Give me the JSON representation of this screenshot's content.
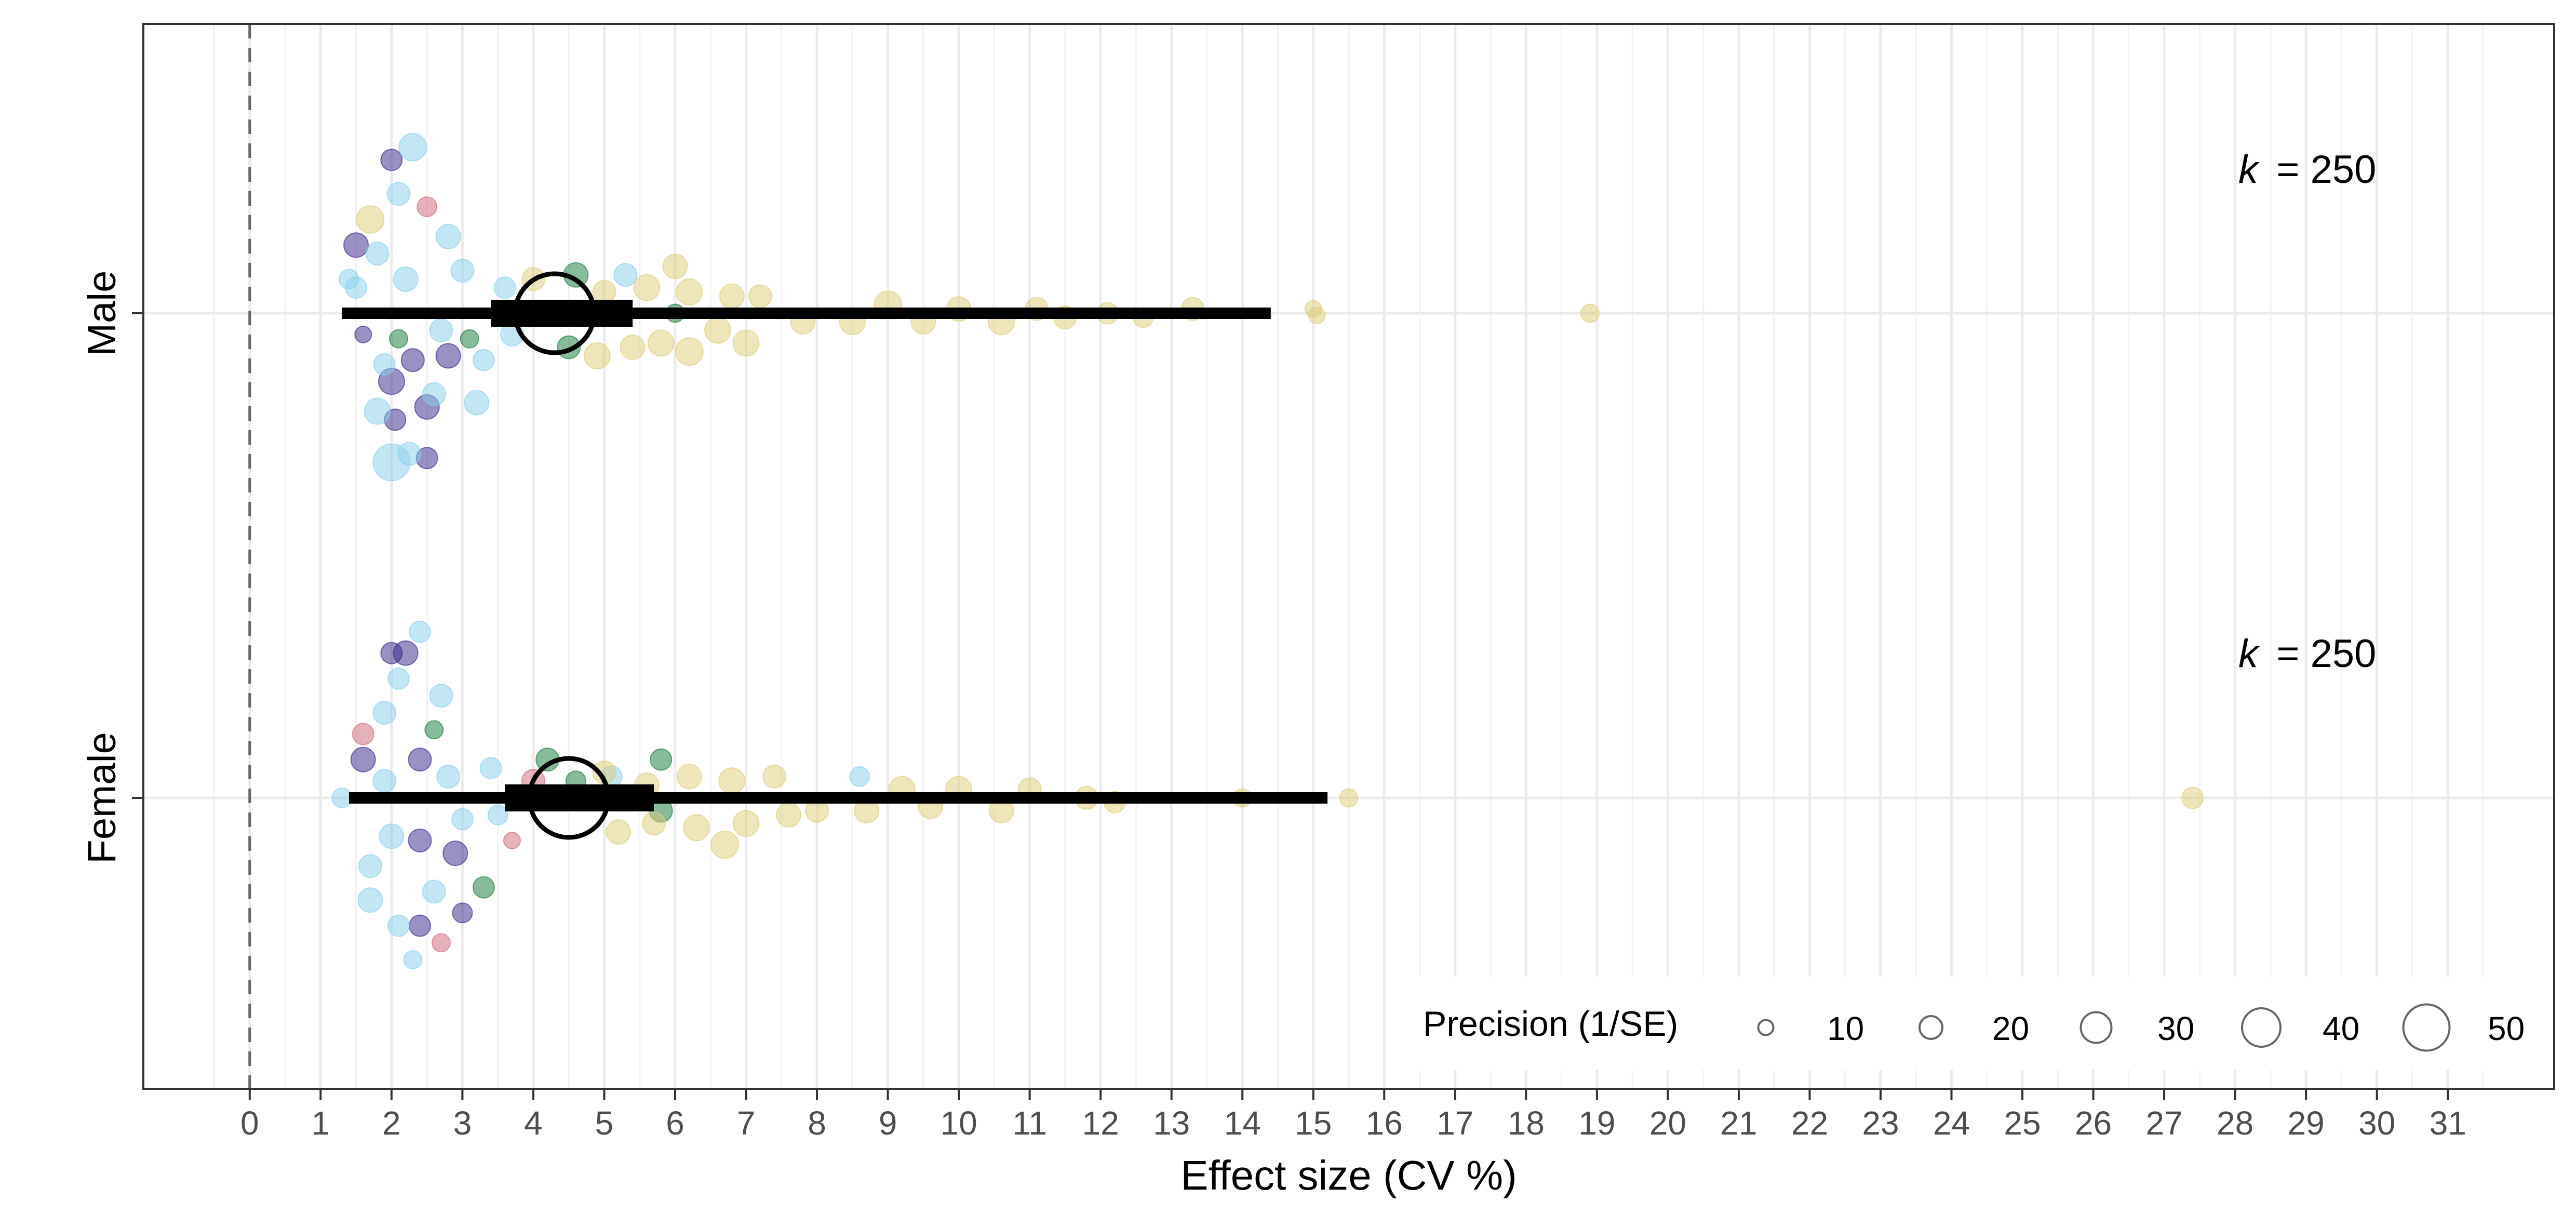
{
  "chart_data": {
    "type": "scatter",
    "subtype": "orchard-plot",
    "title": "",
    "xlabel": "Effect size (CV %)",
    "ylabel": "",
    "xlim": [
      -1.5,
      32.5
    ],
    "x_ticks": [
      0,
      1,
      2,
      3,
      4,
      5,
      6,
      7,
      8,
      9,
      10,
      11,
      12,
      13,
      14,
      15,
      16,
      17,
      18,
      19,
      20,
      21,
      22,
      23,
      24,
      25,
      26,
      27,
      28,
      29,
      30,
      31
    ],
    "reference_line": 0,
    "grid": true,
    "categories": [
      "Male",
      "Female"
    ],
    "group_colors": {
      "light_blue": "#87CEEB",
      "yellow": "#DDCC77",
      "dark_blue": "#332288",
      "green": "#117733",
      "red": "#CC6677"
    },
    "groups": [
      {
        "name": "Male",
        "k_label": "k = 250",
        "k_symbol": "k",
        "k_value": "= 250",
        "estimate": 4.3,
        "ci": [
          3.4,
          5.4
        ],
        "pi": [
          1.3,
          14.4
        ],
        "points": [
          {
            "x": 2.0,
            "dy": 0.35,
            "p": 38,
            "c": "light_blue"
          },
          {
            "x": 2.5,
            "dy": 0.34,
            "p": 18,
            "c": "dark_blue"
          },
          {
            "x": 2.25,
            "dy": 0.33,
            "p": 20,
            "c": "light_blue"
          },
          {
            "x": 2.5,
            "dy": 0.22,
            "p": 22,
            "c": "dark_blue"
          },
          {
            "x": 2.05,
            "dy": 0.25,
            "p": 18,
            "c": "dark_blue"
          },
          {
            "x": 2.0,
            "dy": 0.16,
            "p": 24,
            "c": "dark_blue"
          },
          {
            "x": 2.3,
            "dy": 0.11,
            "p": 20,
            "c": "dark_blue"
          },
          {
            "x": 2.8,
            "dy": 0.1,
            "p": 22,
            "c": "dark_blue"
          },
          {
            "x": 1.6,
            "dy": 0.05,
            "p": 12,
            "c": "dark_blue"
          },
          {
            "x": 2.1,
            "dy": 0.06,
            "p": 14,
            "c": "green"
          },
          {
            "x": 3.1,
            "dy": 0.06,
            "p": 14,
            "c": "green"
          },
          {
            "x": 4.5,
            "dy": 0.08,
            "p": 20,
            "c": "green"
          },
          {
            "x": 4.6,
            "dy": -0.09,
            "p": 22,
            "c": "green"
          },
          {
            "x": 6.0,
            "dy": 0.0,
            "p": 14,
            "c": "green"
          },
          {
            "x": 1.5,
            "dy": -0.16,
            "p": 22,
            "c": "dark_blue"
          },
          {
            "x": 2.0,
            "dy": -0.36,
            "p": 18,
            "c": "dark_blue"
          },
          {
            "x": 2.5,
            "dy": -0.25,
            "p": 16,
            "c": "red"
          },
          {
            "x": 1.7,
            "dy": -0.22,
            "p": 26,
            "c": "yellow"
          },
          {
            "x": 2.3,
            "dy": -0.39,
            "p": 26,
            "c": "light_blue"
          },
          {
            "x": 1.8,
            "dy": 0.23,
            "p": 24,
            "c": "light_blue"
          },
          {
            "x": 2.6,
            "dy": 0.19,
            "p": 20,
            "c": "light_blue"
          },
          {
            "x": 3.2,
            "dy": 0.21,
            "p": 22,
            "c": "light_blue"
          },
          {
            "x": 1.9,
            "dy": 0.12,
            "p": 18,
            "c": "light_blue"
          },
          {
            "x": 3.3,
            "dy": 0.11,
            "p": 18,
            "c": "light_blue"
          },
          {
            "x": 2.7,
            "dy": 0.04,
            "p": 20,
            "c": "light_blue"
          },
          {
            "x": 3.7,
            "dy": 0.05,
            "p": 20,
            "c": "light_blue"
          },
          {
            "x": 1.5,
            "dy": -0.06,
            "p": 18,
            "c": "light_blue"
          },
          {
            "x": 2.2,
            "dy": -0.08,
            "p": 22,
            "c": "light_blue"
          },
          {
            "x": 3.0,
            "dy": -0.1,
            "p": 20,
            "c": "light_blue"
          },
          {
            "x": 1.8,
            "dy": -0.14,
            "p": 20,
            "c": "light_blue"
          },
          {
            "x": 2.8,
            "dy": -0.18,
            "p": 22,
            "c": "light_blue"
          },
          {
            "x": 3.6,
            "dy": -0.06,
            "p": 18,
            "c": "light_blue"
          },
          {
            "x": 5.3,
            "dy": -0.09,
            "p": 20,
            "c": "light_blue"
          },
          {
            "x": 2.1,
            "dy": -0.28,
            "p": 20,
            "c": "light_blue"
          },
          {
            "x": 1.4,
            "dy": -0.08,
            "p": 16,
            "c": "light_blue"
          },
          {
            "x": 4.9,
            "dy": 0.1,
            "p": 24,
            "c": "yellow"
          },
          {
            "x": 5.4,
            "dy": 0.08,
            "p": 22,
            "c": "yellow"
          },
          {
            "x": 5.8,
            "dy": 0.07,
            "p": 24,
            "c": "yellow"
          },
          {
            "x": 6.2,
            "dy": 0.09,
            "p": 26,
            "c": "yellow"
          },
          {
            "x": 6.6,
            "dy": 0.04,
            "p": 24,
            "c": "yellow"
          },
          {
            "x": 7.0,
            "dy": 0.07,
            "p": 24,
            "c": "yellow"
          },
          {
            "x": 5.0,
            "dy": -0.05,
            "p": 20,
            "c": "yellow"
          },
          {
            "x": 5.6,
            "dy": -0.06,
            "p": 24,
            "c": "yellow"
          },
          {
            "x": 6.2,
            "dy": -0.05,
            "p": 24,
            "c": "yellow"
          },
          {
            "x": 6.8,
            "dy": -0.04,
            "p": 22,
            "c": "yellow"
          },
          {
            "x": 7.2,
            "dy": -0.04,
            "p": 20,
            "c": "yellow"
          },
          {
            "x": 4.0,
            "dy": -0.08,
            "p": 20,
            "c": "yellow"
          },
          {
            "x": 6.0,
            "dy": -0.11,
            "p": 22,
            "c": "yellow"
          },
          {
            "x": 7.8,
            "dy": 0.02,
            "p": 22,
            "c": "yellow"
          },
          {
            "x": 8.5,
            "dy": 0.02,
            "p": 24,
            "c": "yellow"
          },
          {
            "x": 9.0,
            "dy": -0.02,
            "p": 26,
            "c": "yellow"
          },
          {
            "x": 9.5,
            "dy": 0.02,
            "p": 22,
            "c": "yellow"
          },
          {
            "x": 10.0,
            "dy": -0.01,
            "p": 22,
            "c": "yellow"
          },
          {
            "x": 10.6,
            "dy": 0.02,
            "p": 24,
            "c": "yellow"
          },
          {
            "x": 11.1,
            "dy": -0.01,
            "p": 20,
            "c": "yellow"
          },
          {
            "x": 11.5,
            "dy": 0.01,
            "p": 20,
            "c": "yellow"
          },
          {
            "x": 12.1,
            "dy": 0.0,
            "p": 18,
            "c": "yellow"
          },
          {
            "x": 12.6,
            "dy": 0.01,
            "p": 16,
            "c": "yellow"
          },
          {
            "x": 13.3,
            "dy": -0.01,
            "p": 20,
            "c": "yellow"
          },
          {
            "x": 15.0,
            "dy": -0.01,
            "p": 12,
            "c": "yellow"
          },
          {
            "x": 15.05,
            "dy": 0.005,
            "p": 12,
            "c": "yellow"
          },
          {
            "x": 18.9,
            "dy": 0.0,
            "p": 14,
            "c": "yellow"
          }
        ]
      },
      {
        "name": "Female",
        "k_label": "k = 250",
        "k_symbol": "k",
        "k_value": "= 250",
        "estimate": 4.5,
        "ci": [
          3.6,
          5.7
        ],
        "pi": [
          1.4,
          15.2
        ],
        "points": [
          {
            "x": 2.3,
            "dy": 0.38,
            "p": 14,
            "c": "light_blue"
          },
          {
            "x": 2.7,
            "dy": 0.34,
            "p": 14,
            "c": "red"
          },
          {
            "x": 2.4,
            "dy": 0.3,
            "p": 18,
            "c": "dark_blue"
          },
          {
            "x": 3.0,
            "dy": 0.27,
            "p": 16,
            "c": "dark_blue"
          },
          {
            "x": 3.3,
            "dy": 0.21,
            "p": 18,
            "c": "green"
          },
          {
            "x": 2.9,
            "dy": 0.13,
            "p": 22,
            "c": "dark_blue"
          },
          {
            "x": 2.4,
            "dy": 0.1,
            "p": 20,
            "c": "dark_blue"
          },
          {
            "x": 3.7,
            "dy": 0.1,
            "p": 12,
            "c": "red"
          },
          {
            "x": 5.8,
            "dy": 0.03,
            "p": 20,
            "c": "green"
          },
          {
            "x": 4.0,
            "dy": -0.04,
            "p": 20,
            "c": "red"
          },
          {
            "x": 4.6,
            "dy": -0.04,
            "p": 16,
            "c": "green"
          },
          {
            "x": 4.2,
            "dy": -0.09,
            "p": 20,
            "c": "green"
          },
          {
            "x": 5.8,
            "dy": -0.09,
            "p": 18,
            "c": "green"
          },
          {
            "x": 1.6,
            "dy": -0.09,
            "p": 22,
            "c": "dark_blue"
          },
          {
            "x": 2.4,
            "dy": -0.09,
            "p": 20,
            "c": "dark_blue"
          },
          {
            "x": 1.6,
            "dy": -0.15,
            "p": 18,
            "c": "red"
          },
          {
            "x": 2.6,
            "dy": -0.16,
            "p": 14,
            "c": "green"
          },
          {
            "x": 2.0,
            "dy": -0.34,
            "p": 18,
            "c": "dark_blue"
          },
          {
            "x": 2.2,
            "dy": -0.34,
            "p": 22,
            "c": "dark_blue"
          },
          {
            "x": 2.4,
            "dy": -0.39,
            "p": 18,
            "c": "light_blue"
          },
          {
            "x": 1.3,
            "dy": 0.0,
            "p": 16,
            "c": "light_blue"
          },
          {
            "x": 1.7,
            "dy": 0.24,
            "p": 22,
            "c": "light_blue"
          },
          {
            "x": 2.1,
            "dy": 0.3,
            "p": 18,
            "c": "light_blue"
          },
          {
            "x": 2.6,
            "dy": 0.22,
            "p": 20,
            "c": "light_blue"
          },
          {
            "x": 1.7,
            "dy": 0.16,
            "p": 20,
            "c": "light_blue"
          },
          {
            "x": 2.0,
            "dy": 0.09,
            "p": 22,
            "c": "light_blue"
          },
          {
            "x": 3.0,
            "dy": 0.05,
            "p": 18,
            "c": "light_blue"
          },
          {
            "x": 3.5,
            "dy": 0.04,
            "p": 16,
            "c": "light_blue"
          },
          {
            "x": 1.9,
            "dy": -0.04,
            "p": 20,
            "c": "light_blue"
          },
          {
            "x": 2.8,
            "dy": -0.05,
            "p": 20,
            "c": "light_blue"
          },
          {
            "x": 3.4,
            "dy": -0.07,
            "p": 18,
            "c": "light_blue"
          },
          {
            "x": 5.1,
            "dy": -0.05,
            "p": 18,
            "c": "light_blue"
          },
          {
            "x": 1.9,
            "dy": -0.2,
            "p": 20,
            "c": "light_blue"
          },
          {
            "x": 2.7,
            "dy": -0.24,
            "p": 20,
            "c": "light_blue"
          },
          {
            "x": 2.1,
            "dy": -0.28,
            "p": 18,
            "c": "light_blue"
          },
          {
            "x": 8.6,
            "dy": -0.05,
            "p": 16,
            "c": "light_blue"
          },
          {
            "x": 5.2,
            "dy": 0.08,
            "p": 22,
            "c": "yellow"
          },
          {
            "x": 5.7,
            "dy": 0.06,
            "p": 20,
            "c": "yellow"
          },
          {
            "x": 6.3,
            "dy": 0.07,
            "p": 24,
            "c": "yellow"
          },
          {
            "x": 6.7,
            "dy": 0.11,
            "p": 26,
            "c": "yellow"
          },
          {
            "x": 7.0,
            "dy": 0.06,
            "p": 24,
            "c": "yellow"
          },
          {
            "x": 7.6,
            "dy": 0.04,
            "p": 22,
            "c": "yellow"
          },
          {
            "x": 5.0,
            "dy": -0.06,
            "p": 20,
            "c": "yellow"
          },
          {
            "x": 5.6,
            "dy": -0.03,
            "p": 22,
            "c": "yellow"
          },
          {
            "x": 6.2,
            "dy": -0.05,
            "p": 22,
            "c": "yellow"
          },
          {
            "x": 6.8,
            "dy": -0.04,
            "p": 24,
            "c": "yellow"
          },
          {
            "x": 7.4,
            "dy": -0.05,
            "p": 20,
            "c": "yellow"
          },
          {
            "x": 8.0,
            "dy": 0.03,
            "p": 20,
            "c": "yellow"
          },
          {
            "x": 8.7,
            "dy": 0.03,
            "p": 22,
            "c": "yellow"
          },
          {
            "x": 9.2,
            "dy": -0.02,
            "p": 24,
            "c": "yellow"
          },
          {
            "x": 9.6,
            "dy": 0.02,
            "p": 22,
            "c": "yellow"
          },
          {
            "x": 10.0,
            "dy": -0.02,
            "p": 24,
            "c": "yellow"
          },
          {
            "x": 10.6,
            "dy": 0.03,
            "p": 22,
            "c": "yellow"
          },
          {
            "x": 11.0,
            "dy": -0.02,
            "p": 20,
            "c": "yellow"
          },
          {
            "x": 11.8,
            "dy": 0.0,
            "p": 20,
            "c": "yellow"
          },
          {
            "x": 12.2,
            "dy": 0.01,
            "p": 18,
            "c": "yellow"
          },
          {
            "x": 14.0,
            "dy": 0.0,
            "p": 14,
            "c": "yellow"
          },
          {
            "x": 15.5,
            "dy": 0.0,
            "p": 14,
            "c": "yellow"
          },
          {
            "x": 27.4,
            "dy": 0.0,
            "p": 18,
            "c": "yellow"
          }
        ]
      }
    ],
    "legend": {
      "title": "Precision (1/SE)",
      "position": "bottom-right",
      "sizes": [
        10,
        20,
        30,
        40,
        50
      ],
      "labels": [
        "10",
        "20",
        "30",
        "40",
        "50"
      ]
    }
  }
}
